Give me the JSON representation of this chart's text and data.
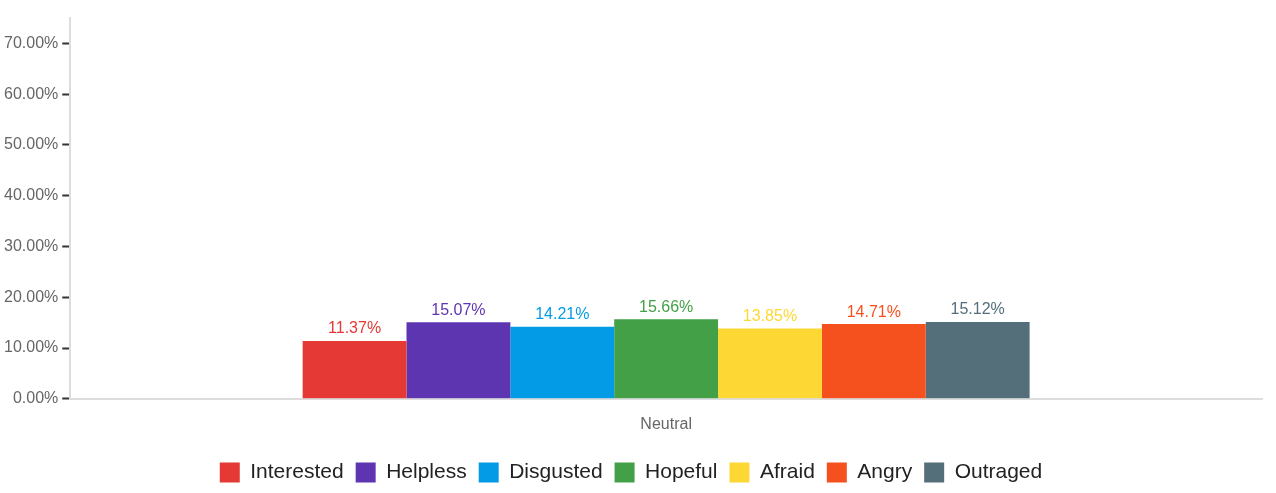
{
  "chart_data": {
    "type": "bar",
    "categories": [
      "Neutral"
    ],
    "series": [
      {
        "name": "Interested",
        "color": "#e53935",
        "values": [
          11.37
        ],
        "value_labels": [
          "11.37%"
        ]
      },
      {
        "name": "Helpless",
        "color": "#5e35b1",
        "values": [
          15.07
        ],
        "value_labels": [
          "15.07%"
        ]
      },
      {
        "name": "Disgusted",
        "color": "#039be5",
        "values": [
          14.21
        ],
        "value_labels": [
          "14.21%"
        ]
      },
      {
        "name": "Hopeful",
        "color": "#43a047",
        "values": [
          15.66
        ],
        "value_labels": [
          "15.66%"
        ]
      },
      {
        "name": "Afraid",
        "color": "#fdd835",
        "values": [
          13.85
        ],
        "value_labels": [
          "13.85%"
        ]
      },
      {
        "name": "Angry",
        "color": "#f4511e",
        "values": [
          14.71
        ],
        "value_labels": [
          "14.71%"
        ]
      },
      {
        "name": "Outraged",
        "color": "#546e7a",
        "values": [
          15.12
        ],
        "value_labels": [
          "15.12%"
        ]
      }
    ],
    "ylim": [
      0,
      75
    ],
    "yticks": [
      {
        "value": 0,
        "label": "0.00%"
      },
      {
        "value": 10,
        "label": "10.00%"
      },
      {
        "value": 20,
        "label": "20.00%"
      },
      {
        "value": 30,
        "label": "30.00%"
      },
      {
        "value": 40,
        "label": "40.00%"
      },
      {
        "value": 50,
        "label": "50.00%"
      },
      {
        "value": 60,
        "label": "60.00%"
      },
      {
        "value": 70,
        "label": "70.00%"
      }
    ],
    "grid": false,
    "legend": "bottom"
  }
}
